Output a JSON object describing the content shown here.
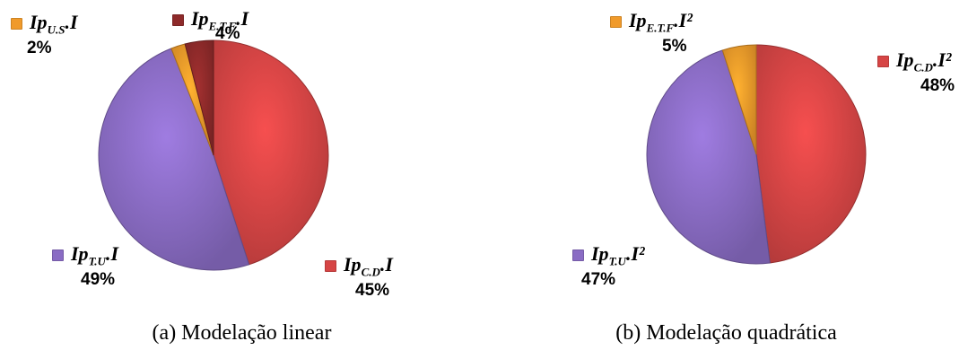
{
  "chart_data": [
    {
      "type": "pie",
      "caption": "(a) Modelação linear",
      "slices": [
        {
          "name_base": "Ip",
          "name_sub": "C.D",
          "name_suffix": ".I",
          "value": 45,
          "label": "45%",
          "color": "#d64545"
        },
        {
          "name_base": "Ip",
          "name_sub": "T.U",
          "name_suffix": ".I",
          "value": 49,
          "label": "49%",
          "color": "#8a6cc4"
        },
        {
          "name_base": "Ip",
          "name_sub": "U.S",
          "name_suffix": ".I",
          "value": 2,
          "label": "2%",
          "color": "#f09a2a"
        },
        {
          "name_base": "Ip",
          "name_sub": "E.T.F",
          "name_suffix": ".I",
          "value": 4,
          "label": "4%",
          "color": "#8e2a2a"
        }
      ]
    },
    {
      "type": "pie",
      "caption": "(b) Modelação quadrática",
      "slices": [
        {
          "name_base": "Ip",
          "name_sub": "C.D",
          "name_suffix": ".I²",
          "value": 48,
          "label": "48%",
          "color": "#d64545"
        },
        {
          "name_base": "Ip",
          "name_sub": "T.U",
          "name_suffix": ".I²",
          "value": 47,
          "label": "47%",
          "color": "#8a6cc4"
        },
        {
          "name_base": "Ip",
          "name_sub": "E.T.F",
          "name_suffix": ".I²",
          "value": 5,
          "label": "5%",
          "color": "#f09a2a"
        }
      ]
    }
  ]
}
